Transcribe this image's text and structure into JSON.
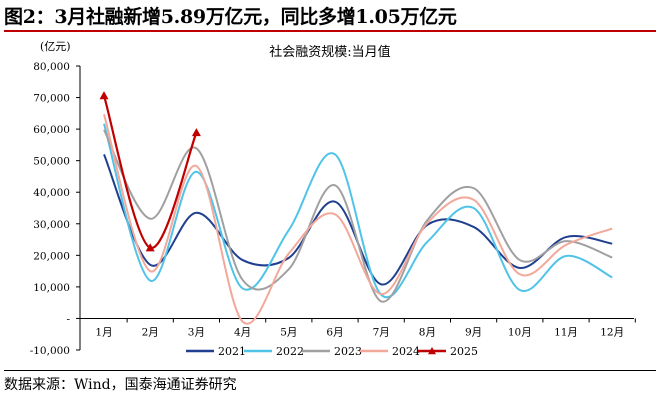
{
  "figure": {
    "title": "图2：3月社融新增5.89万亿元，同比多增1.05万亿元",
    "source": "数据来源：Wind，国泰海通证券研究"
  },
  "chart_data": {
    "type": "line",
    "title": "社会融资规模:当月值",
    "ylabel": "(亿元)",
    "xlabel": "",
    "categories": [
      "1月",
      "2月",
      "3月",
      "4月",
      "5月",
      "6月",
      "7月",
      "8月",
      "9月",
      "10月",
      "11月",
      "12月"
    ],
    "ylim": [
      -10000,
      80000
    ],
    "yticks": [
      -10000,
      0,
      10000,
      20000,
      30000,
      40000,
      50000,
      60000,
      70000,
      80000
    ],
    "ytick_labels": [
      "-10,000",
      "-",
      "10,000",
      "20,000",
      "30,000",
      "40,000",
      "50,000",
      "60,000",
      "70,000",
      "80,000"
    ],
    "grid": false,
    "legend": "bottom",
    "series": [
      {
        "name": "2021",
        "color": "#1f3f8f",
        "values": [
          52000,
          17000,
          33500,
          18500,
          19200,
          37000,
          10800,
          29700,
          29000,
          16000,
          25800,
          23700
        ]
      },
      {
        "name": "2022",
        "color": "#4fc3e8",
        "values": [
          61700,
          12000,
          46500,
          9500,
          28000,
          52000,
          7500,
          24300,
          35000,
          9000,
          19800,
          13000
        ]
      },
      {
        "name": "2023",
        "color": "#a0a0a0",
        "values": [
          59800,
          31600,
          53900,
          12200,
          15600,
          42200,
          5400,
          31200,
          41300,
          18500,
          24500,
          19300
        ]
      },
      {
        "name": "2024",
        "color": "#f2a89a",
        "values": [
          64700,
          15000,
          48300,
          -1000,
          20600,
          33000,
          7700,
          30300,
          37600,
          14000,
          23300,
          28500
        ]
      },
      {
        "name": "2025",
        "color": "#c00000",
        "marker": "triangle",
        "values": [
          70600,
          22400,
          58900,
          null,
          null,
          null,
          null,
          null,
          null,
          null,
          null,
          null
        ]
      }
    ]
  }
}
